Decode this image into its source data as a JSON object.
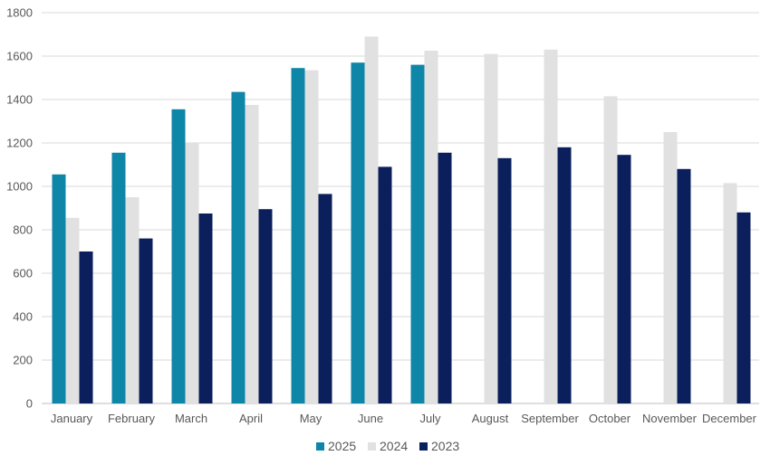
{
  "chart_data": {
    "type": "bar",
    "categories": [
      "January",
      "February",
      "March",
      "April",
      "May",
      "June",
      "July",
      "August",
      "September",
      "October",
      "November",
      "December"
    ],
    "series": [
      {
        "name": "2025",
        "color": "#0E86A8",
        "values": [
          1055,
          1155,
          1355,
          1435,
          1545,
          1570,
          1560,
          null,
          null,
          null,
          null,
          null
        ]
      },
      {
        "name": "2024",
        "color": "#E1E1E1",
        "values": [
          855,
          950,
          1200,
          1375,
          1535,
          1690,
          1625,
          1610,
          1630,
          1415,
          1250,
          1015
        ]
      },
      {
        "name": "2023",
        "color": "#0A1F5C",
        "values": [
          700,
          760,
          875,
          895,
          965,
          1090,
          1155,
          1130,
          1180,
          1145,
          1080,
          880
        ]
      }
    ],
    "yticks": [
      0,
      200,
      400,
      600,
      800,
      1000,
      1200,
      1400,
      1600,
      1800
    ],
    "ylim": [
      0,
      1800
    ],
    "grid": true,
    "legend_position": "bottom"
  }
}
